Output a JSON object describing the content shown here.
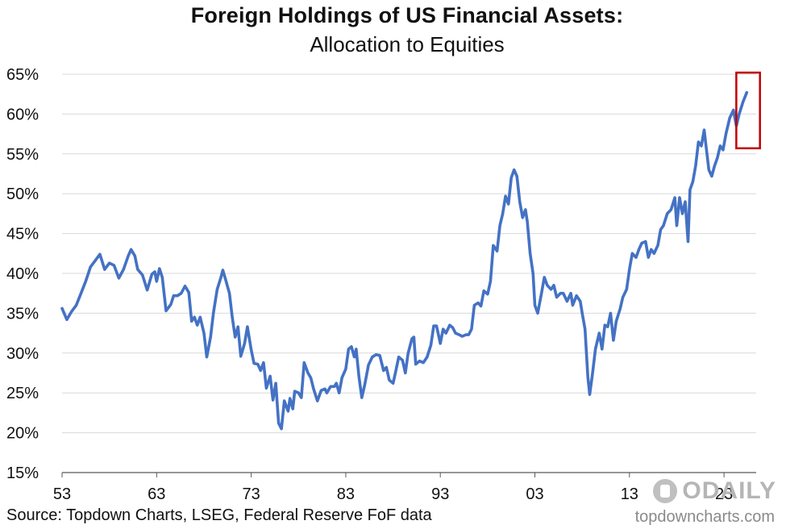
{
  "header": {
    "title": "Foreign Holdings of US Financial Assets:",
    "subtitle": "Allocation to Equities"
  },
  "footer": {
    "source": "Source: Topdown Charts, LSEG, Federal Reserve FoF data",
    "watermark_url": "topdowncharts.com",
    "watermark_logo": "ODAILY"
  },
  "colors": {
    "line": "#4472C4",
    "grid": "#D9D9D9",
    "highlight_box": "#C00000",
    "axis": "#595959"
  },
  "chart_data": {
    "type": "line",
    "title": "Foreign Holdings of US Financial Assets:",
    "subtitle": "Allocation to Equities",
    "xlabel": "",
    "ylabel": "",
    "xlim": [
      1953,
      2026.4
    ],
    "ylim": [
      15,
      65
    ],
    "x_ticks": [
      1953,
      1963,
      1973,
      1983,
      1993,
      2003,
      2013,
      2023
    ],
    "x_tick_labels": [
      "53",
      "63",
      "73",
      "83",
      "93",
      "03",
      "13",
      "23"
    ],
    "y_ticks": [
      15,
      20,
      25,
      30,
      35,
      40,
      45,
      50,
      55,
      60,
      65
    ],
    "y_tick_labels": [
      "15%",
      "20%",
      "25%",
      "30%",
      "35%",
      "40%",
      "45%",
      "50%",
      "55%",
      "60%",
      "65%"
    ],
    "grid": "horizontal",
    "legend": "none",
    "highlight": {
      "x_range": [
        2024.3,
        2026.8
      ],
      "y_range": [
        55.7,
        65.2
      ]
    },
    "series": [
      {
        "name": "",
        "points": [
          [
            1953.0,
            35.6
          ],
          [
            1953.5,
            34.2
          ],
          [
            1954.0,
            35.2
          ],
          [
            1954.5,
            36.0
          ],
          [
            1955.0,
            37.5
          ],
          [
            1955.5,
            39.0
          ],
          [
            1956.0,
            40.8
          ],
          [
            1956.5,
            41.6
          ],
          [
            1957.0,
            42.4
          ],
          [
            1957.5,
            40.5
          ],
          [
            1958.0,
            41.3
          ],
          [
            1958.5,
            41.0
          ],
          [
            1959.0,
            39.4
          ],
          [
            1959.5,
            40.5
          ],
          [
            1960.0,
            42.2
          ],
          [
            1960.3,
            43.0
          ],
          [
            1960.7,
            42.2
          ],
          [
            1961.0,
            40.5
          ],
          [
            1961.5,
            39.8
          ],
          [
            1962.0,
            37.9
          ],
          [
            1962.5,
            39.9
          ],
          [
            1962.8,
            40.2
          ],
          [
            1963.0,
            39.0
          ],
          [
            1963.3,
            40.6
          ],
          [
            1963.6,
            39.5
          ],
          [
            1964.0,
            35.3
          ],
          [
            1964.5,
            36.1
          ],
          [
            1964.8,
            37.2
          ],
          [
            1965.2,
            37.2
          ],
          [
            1965.6,
            37.5
          ],
          [
            1966.0,
            38.4
          ],
          [
            1966.4,
            37.6
          ],
          [
            1966.7,
            34.0
          ],
          [
            1967.0,
            34.5
          ],
          [
            1967.3,
            33.5
          ],
          [
            1967.6,
            34.5
          ],
          [
            1968.0,
            32.5
          ],
          [
            1968.3,
            29.5
          ],
          [
            1968.7,
            32.0
          ],
          [
            1969.0,
            35.0
          ],
          [
            1969.4,
            38.0
          ],
          [
            1969.8,
            39.5
          ],
          [
            1970.0,
            40.4
          ],
          [
            1970.3,
            39.2
          ],
          [
            1970.7,
            37.5
          ],
          [
            1971.0,
            34.5
          ],
          [
            1971.3,
            32.0
          ],
          [
            1971.6,
            33.3
          ],
          [
            1971.9,
            29.6
          ],
          [
            1972.3,
            31.2
          ],
          [
            1972.6,
            33.3
          ],
          [
            1973.0,
            30.4
          ],
          [
            1973.3,
            28.7
          ],
          [
            1973.7,
            28.6
          ],
          [
            1974.0,
            27.8
          ],
          [
            1974.3,
            28.8
          ],
          [
            1974.6,
            25.6
          ],
          [
            1975.0,
            27.1
          ],
          [
            1975.3,
            24.1
          ],
          [
            1975.6,
            26.2
          ],
          [
            1975.9,
            21.2
          ],
          [
            1976.2,
            20.5
          ],
          [
            1976.5,
            24.0
          ],
          [
            1976.9,
            22.7
          ],
          [
            1977.1,
            24.3
          ],
          [
            1977.4,
            23.0
          ],
          [
            1977.6,
            25.2
          ],
          [
            1978.0,
            25.0
          ],
          [
            1978.3,
            24.4
          ],
          [
            1978.6,
            28.8
          ],
          [
            1979.0,
            27.5
          ],
          [
            1979.3,
            26.9
          ],
          [
            1979.6,
            25.5
          ],
          [
            1980.0,
            24.0
          ],
          [
            1980.4,
            25.3
          ],
          [
            1980.8,
            25.5
          ],
          [
            1981.0,
            25.0
          ],
          [
            1981.4,
            25.8
          ],
          [
            1981.8,
            25.8
          ],
          [
            1982.0,
            26.2
          ],
          [
            1982.3,
            25.0
          ],
          [
            1982.6,
            26.9
          ],
          [
            1983.0,
            28.0
          ],
          [
            1983.3,
            30.5
          ],
          [
            1983.6,
            30.8
          ],
          [
            1983.9,
            29.5
          ],
          [
            1984.1,
            30.5
          ],
          [
            1984.4,
            27.0
          ],
          [
            1984.7,
            24.4
          ],
          [
            1985.0,
            26.0
          ],
          [
            1985.4,
            28.5
          ],
          [
            1985.8,
            29.5
          ],
          [
            1986.2,
            29.8
          ],
          [
            1986.6,
            29.7
          ],
          [
            1987.0,
            27.8
          ],
          [
            1987.3,
            28.2
          ],
          [
            1987.6,
            26.6
          ],
          [
            1988.0,
            26.2
          ],
          [
            1988.3,
            27.8
          ],
          [
            1988.6,
            29.5
          ],
          [
            1989.0,
            29.1
          ],
          [
            1989.3,
            27.5
          ],
          [
            1989.6,
            30.0
          ],
          [
            1990.0,
            31.8
          ],
          [
            1990.2,
            32.0
          ],
          [
            1990.4,
            28.6
          ],
          [
            1990.8,
            29.0
          ],
          [
            1991.2,
            28.8
          ],
          [
            1991.6,
            29.5
          ],
          [
            1992.0,
            31.0
          ],
          [
            1992.3,
            33.4
          ],
          [
            1992.6,
            33.4
          ],
          [
            1993.0,
            31.2
          ],
          [
            1993.3,
            33.0
          ],
          [
            1993.6,
            32.5
          ],
          [
            1994.0,
            33.5
          ],
          [
            1994.3,
            33.2
          ],
          [
            1994.6,
            32.5
          ],
          [
            1995.0,
            32.3
          ],
          [
            1995.3,
            32.1
          ],
          [
            1995.7,
            32.3
          ],
          [
            1996.0,
            32.3
          ],
          [
            1996.3,
            33.0
          ],
          [
            1996.6,
            36.0
          ],
          [
            1997.0,
            36.3
          ],
          [
            1997.3,
            35.9
          ],
          [
            1997.6,
            37.8
          ],
          [
            1998.0,
            37.4
          ],
          [
            1998.3,
            39.0
          ],
          [
            1998.6,
            43.5
          ],
          [
            1999.0,
            42.8
          ],
          [
            1999.3,
            46.0
          ],
          [
            1999.6,
            47.5
          ],
          [
            1999.9,
            49.7
          ],
          [
            2000.2,
            48.7
          ],
          [
            2000.5,
            52.0
          ],
          [
            2000.8,
            53.0
          ],
          [
            2001.1,
            52.2
          ],
          [
            2001.4,
            49.0
          ],
          [
            2001.7,
            47.0
          ],
          [
            2002.0,
            48.0
          ],
          [
            2002.2,
            46.5
          ],
          [
            2002.5,
            42.5
          ],
          [
            2002.8,
            40.0
          ],
          [
            2003.0,
            36.0
          ],
          [
            2003.3,
            35.0
          ],
          [
            2003.7,
            37.5
          ],
          [
            2004.0,
            39.5
          ],
          [
            2004.3,
            38.5
          ],
          [
            2004.7,
            38.0
          ],
          [
            2005.0,
            38.5
          ],
          [
            2005.3,
            37.0
          ],
          [
            2005.7,
            37.5
          ],
          [
            2006.0,
            37.5
          ],
          [
            2006.4,
            36.5
          ],
          [
            2006.8,
            37.5
          ],
          [
            2007.0,
            36.0
          ],
          [
            2007.4,
            37.2
          ],
          [
            2007.8,
            36.5
          ],
          [
            2008.0,
            35.0
          ],
          [
            2008.3,
            33.0
          ],
          [
            2008.6,
            27.0
          ],
          [
            2008.8,
            24.8
          ],
          [
            2009.1,
            27.5
          ],
          [
            2009.4,
            30.5
          ],
          [
            2009.8,
            32.5
          ],
          [
            2010.1,
            30.5
          ],
          [
            2010.4,
            33.5
          ],
          [
            2010.7,
            33.3
          ],
          [
            2011.0,
            35.0
          ],
          [
            2011.3,
            31.6
          ],
          [
            2011.6,
            34.0
          ],
          [
            2012.0,
            35.5
          ],
          [
            2012.3,
            37.0
          ],
          [
            2012.7,
            38.0
          ],
          [
            2013.0,
            40.5
          ],
          [
            2013.3,
            42.5
          ],
          [
            2013.7,
            42.0
          ],
          [
            2014.0,
            43.0
          ],
          [
            2014.3,
            43.8
          ],
          [
            2014.7,
            44.0
          ],
          [
            2015.0,
            42.0
          ],
          [
            2015.3,
            43.0
          ],
          [
            2015.6,
            42.5
          ],
          [
            2016.0,
            43.5
          ],
          [
            2016.3,
            45.5
          ],
          [
            2016.6,
            46.0
          ],
          [
            2017.0,
            47.5
          ],
          [
            2017.4,
            48.0
          ],
          [
            2017.8,
            49.5
          ],
          [
            2018.0,
            46.0
          ],
          [
            2018.3,
            49.5
          ],
          [
            2018.6,
            47.5
          ],
          [
            2018.9,
            49.0
          ],
          [
            2019.2,
            44.0
          ],
          [
            2019.4,
            50.5
          ],
          [
            2019.7,
            51.5
          ],
          [
            2020.0,
            53.5
          ],
          [
            2020.3,
            56.5
          ],
          [
            2020.6,
            56.0
          ],
          [
            2020.9,
            58.0
          ],
          [
            2021.1,
            56.0
          ],
          [
            2021.4,
            53.0
          ],
          [
            2021.7,
            52.2
          ],
          [
            2022.0,
            53.5
          ],
          [
            2022.3,
            54.5
          ],
          [
            2022.6,
            56.0
          ],
          [
            2022.9,
            55.5
          ],
          [
            2023.2,
            57.5
          ],
          [
            2023.6,
            59.5
          ],
          [
            2024.0,
            60.5
          ],
          [
            2024.3,
            58.5
          ],
          [
            2024.6,
            60.0
          ],
          [
            2025.0,
            61.5
          ],
          [
            2025.4,
            62.7
          ]
        ]
      }
    ]
  }
}
